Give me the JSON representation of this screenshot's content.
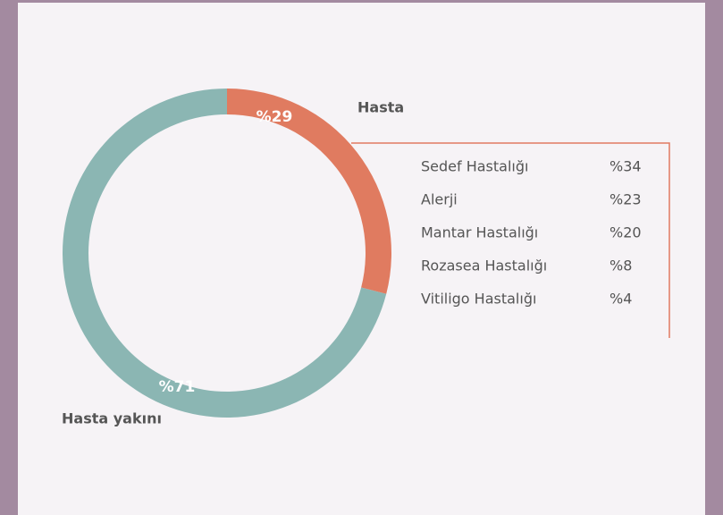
{
  "chart_data": {
    "type": "donut",
    "categories": [
      "Hasta",
      "Hasta yakını"
    ],
    "values": [
      29,
      71
    ],
    "value_labels": [
      "%29",
      "%71"
    ],
    "colors": [
      "#e07b60",
      "#8bb6b3"
    ],
    "breakdown": {
      "items": [
        {
          "name": "Sedef Hastalığı",
          "share": "%34"
        },
        {
          "name": "Alerji",
          "share": "%23"
        },
        {
          "name": "Mantar Hastalığı",
          "share": "%20"
        },
        {
          "name": "Rozasea Hastalığı",
          "share": "%8"
        },
        {
          "name": "Vitiligo Hastalığı",
          "share": "%4"
        }
      ],
      "color": "#e07b60"
    }
  }
}
